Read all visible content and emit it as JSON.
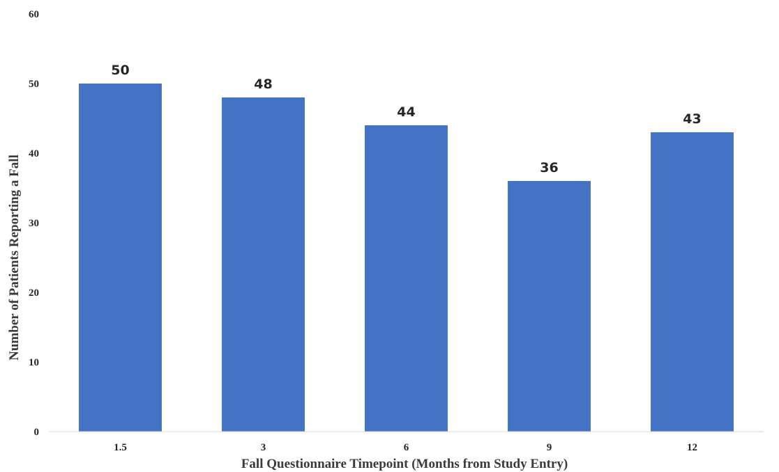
{
  "chart_data": {
    "type": "bar",
    "title": "",
    "xlabel": "Fall Questionnaire Timepoint (Months from Study Entry)",
    "ylabel": "Number of Patients Reporting a Fall",
    "categories": [
      "1.5",
      "3",
      "6",
      "9",
      "12"
    ],
    "values": [
      50,
      48,
      44,
      36,
      43
    ],
    "data_labels": [
      "50",
      "48",
      "44",
      "36",
      "43"
    ],
    "ylim": [
      0,
      60
    ],
    "yticks": [
      0,
      10,
      20,
      30,
      40,
      50,
      60
    ],
    "grid": false,
    "legend": "none",
    "bar_color": "#4472C4"
  }
}
